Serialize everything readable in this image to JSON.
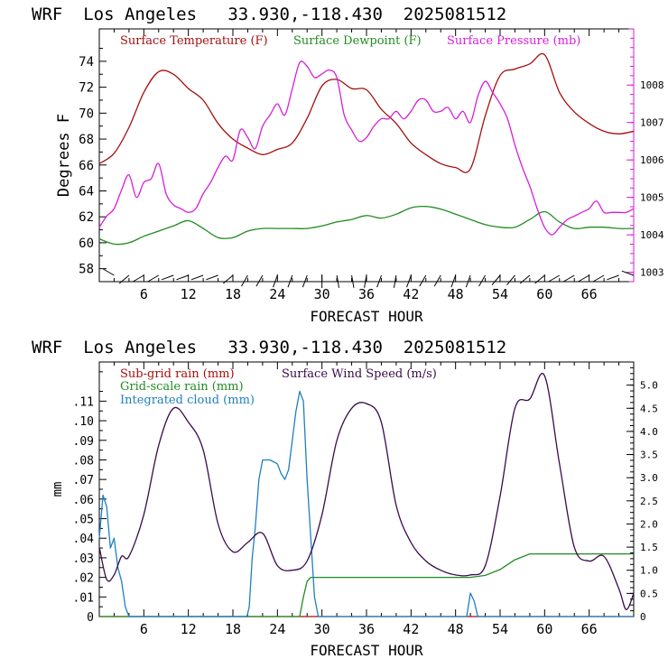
{
  "chart_data": [
    {
      "type": "line",
      "title": "WRF  Los Angeles   33.930,-118.430  2025081512",
      "xlabel": "FORECAST HOUR",
      "ylabel": "Degrees F",
      "xlim": [
        0,
        72
      ],
      "ylim": [
        57,
        76.5
      ],
      "y2lim": [
        1002.75,
        1009.5
      ],
      "xticks": [
        "6",
        "12",
        "18",
        "24",
        "30",
        "36",
        "42",
        "48",
        "54",
        "60",
        "66"
      ],
      "yticks": [
        "58",
        "60",
        "62",
        "64",
        "66",
        "68",
        "70",
        "72",
        "74"
      ],
      "y2ticks": [
        "1003",
        "1004",
        "1005",
        "1006",
        "1007",
        "1008"
      ],
      "legend_position": "top",
      "colors": {
        "temperature": "#a50f0f",
        "dewpoint": "#228b22",
        "pressure": "#d81ed8",
        "wind_barb": "#000000"
      },
      "series": [
        {
          "name": "Surface Temperature (F)",
          "axis": "left",
          "x": [
            0,
            2,
            4,
            6,
            8,
            10,
            12,
            14,
            16,
            18,
            20,
            22,
            24,
            26,
            28,
            30,
            32,
            34,
            36,
            38,
            40,
            42,
            44,
            46,
            48,
            50,
            52,
            54,
            56,
            58,
            60,
            62,
            64,
            66,
            68,
            70,
            72
          ],
          "values": [
            66.1,
            66.9,
            68.9,
            71.6,
            73.2,
            73.0,
            71.9,
            71.0,
            69.2,
            68.0,
            67.3,
            66.8,
            67.2,
            67.7,
            69.6,
            72.1,
            72.6,
            71.9,
            71.8,
            70.3,
            69.2,
            67.7,
            66.8,
            66.1,
            65.8,
            65.7,
            69.8,
            72.9,
            73.4,
            73.8,
            74.5,
            71.6,
            70.1,
            69.2,
            68.6,
            68.4,
            68.6
          ]
        },
        {
          "name": "Surface Dewpoint (F)",
          "axis": "left",
          "x": [
            0,
            2,
            4,
            6,
            8,
            10,
            12,
            14,
            16,
            18,
            20,
            22,
            24,
            26,
            28,
            30,
            32,
            34,
            36,
            38,
            40,
            42,
            44,
            46,
            48,
            50,
            52,
            54,
            56,
            58,
            60,
            62,
            64,
            66,
            68,
            70,
            72
          ],
          "values": [
            60.3,
            59.9,
            60.0,
            60.5,
            60.9,
            61.3,
            61.7,
            61.1,
            60.4,
            60.4,
            60.9,
            61.1,
            61.1,
            61.1,
            61.1,
            61.3,
            61.6,
            61.8,
            62.1,
            61.9,
            62.2,
            62.7,
            62.8,
            62.6,
            62.2,
            61.8,
            61.4,
            61.2,
            61.2,
            61.8,
            62.4,
            61.6,
            61.1,
            61.2,
            61.2,
            61.1,
            61.1
          ]
        },
        {
          "name": "Surface Pressure (mb)",
          "axis": "right",
          "x": [
            0,
            1,
            2,
            3,
            4,
            5,
            6,
            7,
            8,
            9,
            10,
            11,
            12,
            13,
            14,
            15,
            16,
            17,
            18,
            19,
            20,
            21,
            22,
            23,
            24,
            25,
            26,
            27,
            28,
            29,
            30,
            31,
            32,
            33,
            34,
            35,
            36,
            37,
            38,
            39,
            40,
            41,
            42,
            43,
            44,
            45,
            46,
            47,
            48,
            49,
            50,
            51,
            52,
            53,
            54,
            55,
            56,
            57,
            58,
            59,
            60,
            61,
            62,
            63,
            64,
            65,
            66,
            67,
            68,
            69,
            70,
            71,
            72
          ],
          "values": [
            1004.2,
            1004.5,
            1004.7,
            1005.2,
            1005.6,
            1005.0,
            1005.4,
            1005.5,
            1005.9,
            1005.1,
            1004.8,
            1004.7,
            1004.6,
            1004.7,
            1005.1,
            1005.4,
            1005.8,
            1006.1,
            1006.0,
            1006.8,
            1006.6,
            1006.3,
            1006.9,
            1007.2,
            1007.5,
            1007.2,
            1007.9,
            1008.6,
            1008.5,
            1008.2,
            1008.3,
            1008.4,
            1008.2,
            1007.2,
            1006.8,
            1006.5,
            1006.6,
            1006.9,
            1007.1,
            1007.1,
            1007.3,
            1007.1,
            1007.3,
            1007.6,
            1007.6,
            1007.3,
            1007.3,
            1007.4,
            1007.1,
            1007.3,
            1007.0,
            1007.7,
            1008.1,
            1007.8,
            1007.5,
            1007.1,
            1006.4,
            1005.8,
            1005.3,
            1004.7,
            1004.2,
            1004.0,
            1004.2,
            1004.4,
            1004.5,
            1004.6,
            1004.7,
            1004.9,
            1004.6,
            1004.6,
            1004.6,
            1004.6,
            1004.7
          ]
        }
      ],
      "wind_barbs": {
        "name": "Surface wind",
        "x": [
          2,
          4,
          6,
          8,
          10,
          12,
          14,
          16,
          18,
          20,
          22,
          24,
          26,
          28,
          30,
          32,
          34,
          36,
          38,
          40,
          42,
          44,
          46,
          48,
          50,
          52,
          54,
          56,
          58,
          60,
          62,
          64,
          66,
          68,
          70,
          72
        ],
        "direction_deg": [
          300,
          230,
          240,
          240,
          250,
          250,
          250,
          250,
          230,
          210,
          210,
          200,
          200,
          200,
          180,
          170,
          170,
          190,
          200,
          190,
          200,
          210,
          210,
          200,
          200,
          210,
          220,
          220,
          230,
          230,
          240,
          240,
          240,
          240,
          250,
          290
        ]
      }
    },
    {
      "type": "line",
      "title": "WRF  Los Angeles   33.930,-118.430  2025081512",
      "xlabel": "FORECAST HOUR",
      "ylabel": "mm",
      "xlim": [
        0,
        72
      ],
      "ylim": [
        0,
        0.13
      ],
      "y2lim": [
        0,
        5.5
      ],
      "xticks": [
        "6",
        "12",
        "18",
        "24",
        "30",
        "36",
        "42",
        "48",
        "54",
        "60",
        "66"
      ],
      "yticks": [
        "0",
        ".01",
        ".02",
        ".03",
        ".04",
        ".05",
        ".06",
        ".07",
        ".08",
        ".09",
        ".10",
        ".11"
      ],
      "y2ticks": [
        "0",
        "0.5",
        "1.0",
        "1.5",
        "2.0",
        "2.5",
        "3.0",
        "3.5",
        "4.0",
        "4.5",
        "5.0"
      ],
      "legend_position": "top-left",
      "colors": {
        "subgrid": "#a50f0f",
        "gridscale": "#228b22",
        "cloud": "#1f7fc0",
        "wind": "#3a0a4a"
      },
      "series": [
        {
          "name": "Sub-grid rain (mm)",
          "axis": "left",
          "x": [
            0,
            72
          ],
          "values": [
            0,
            0
          ]
        },
        {
          "name": "Grid-scale rain (mm)",
          "axis": "left",
          "x": [
            0,
            27,
            27.5,
            28,
            28.5,
            50,
            52,
            54,
            56,
            58,
            72
          ],
          "values": [
            0,
            0,
            0.01,
            0.018,
            0.02,
            0.02,
            0.021,
            0.024,
            0.029,
            0.032,
            0.032
          ]
        },
        {
          "name": "Integrated cloud (mm)",
          "axis": "left",
          "x": [
            0,
            0.5,
            1,
            1.5,
            2,
            2.5,
            3,
            3.5,
            4,
            19.9,
            20.2,
            20.6,
            21,
            21.5,
            22,
            23,
            24,
            24.5,
            25,
            25.5,
            26,
            26.5,
            27,
            27.5,
            28,
            28.5,
            29,
            29.5,
            49.5,
            50,
            50.5,
            51,
            72
          ],
          "values": [
            0.04,
            0.062,
            0.056,
            0.035,
            0.04,
            0.025,
            0.018,
            0.005,
            0,
            0,
            0.005,
            0.03,
            0.045,
            0.07,
            0.08,
            0.08,
            0.078,
            0.073,
            0.07,
            0.075,
            0.09,
            0.105,
            0.115,
            0.11,
            0.07,
            0.04,
            0.01,
            0,
            0,
            0.012,
            0.008,
            0,
            0
          ]
        },
        {
          "name": "Surface Wind Speed (m/s)",
          "axis": "right",
          "x": [
            0,
            1,
            2,
            3,
            4,
            6,
            8,
            10,
            12,
            14,
            16,
            18,
            20,
            22,
            24,
            26,
            28,
            30,
            32,
            34,
            36,
            38,
            40,
            42,
            44,
            46,
            48,
            50,
            52,
            54,
            56,
            58,
            60,
            62,
            64,
            66,
            68,
            70,
            71,
            72
          ],
          "values": [
            1.5,
            0.8,
            0.9,
            1.3,
            1.3,
            2.2,
            3.7,
            4.5,
            4.2,
            3.6,
            2.0,
            1.4,
            1.6,
            1.8,
            1.1,
            1.0,
            1.2,
            2.2,
            3.8,
            4.5,
            4.6,
            4.2,
            2.4,
            1.6,
            1.2,
            1.0,
            0.9,
            0.9,
            1.1,
            2.6,
            4.5,
            4.7,
            5.2,
            3.3,
            1.5,
            1.2,
            1.3,
            0.6,
            0.15,
            0.5
          ]
        }
      ]
    }
  ]
}
